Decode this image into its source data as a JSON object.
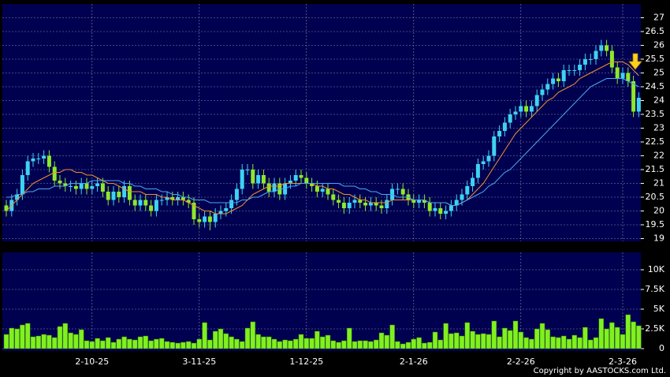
{
  "chart_data": [
    {
      "type": "candlestick",
      "up_color": "#3fd2f2",
      "down_color": "#8ee82a",
      "open": [
        20.2,
        20.0,
        20.4,
        20.6,
        21.3,
        21.8,
        21.9,
        21.9,
        22.0,
        21.6,
        21.1,
        21.0,
        20.9,
        20.9,
        20.8,
        21.0,
        20.8,
        20.9,
        21.0,
        20.7,
        20.4,
        20.7,
        20.5,
        20.9,
        20.4,
        20.2,
        20.4,
        20.2,
        20.0,
        20.4,
        20.4,
        20.5,
        20.4,
        20.5,
        20.4,
        20.3,
        19.7,
        19.6,
        19.8,
        19.6,
        19.9,
        20.0,
        20.1,
        20.4,
        20.8,
        21.5,
        21.5,
        21.0,
        21.3,
        21.0,
        20.7,
        21.0,
        20.6,
        21.0,
        21.1,
        21.3,
        21.2,
        21.0,
        20.9,
        20.7,
        20.8,
        20.6,
        20.4,
        20.3,
        20.1,
        20.3,
        20.4,
        20.3,
        20.2,
        20.3,
        20.2,
        20.1,
        20.4,
        20.8,
        20.8,
        20.6,
        20.4,
        20.3,
        20.4,
        20.3,
        20.0,
        20.1,
        19.9,
        20.0,
        20.2,
        20.4,
        20.6,
        20.9,
        21.2,
        21.7,
        21.8,
        22.0,
        22.7,
        22.9,
        23.2,
        23.5,
        23.6,
        23.8,
        23.6,
        23.8,
        24.2,
        24.4,
        24.6,
        24.8,
        24.7,
        25.1,
        25.1,
        25.1,
        25.3,
        25.5,
        25.5,
        25.8,
        26.0,
        25.8,
        25.2,
        24.8,
        25.0,
        24.7,
        23.6
      ],
      "high": [
        20.4,
        20.6,
        20.8,
        21.5,
        22.0,
        22.1,
        22.1,
        22.2,
        22.2,
        21.8,
        21.3,
        21.2,
        21.1,
        21.1,
        21.2,
        21.2,
        21.1,
        21.2,
        21.2,
        20.9,
        20.9,
        20.9,
        21.1,
        21.1,
        20.6,
        20.6,
        20.6,
        20.4,
        20.6,
        20.6,
        20.7,
        20.7,
        20.7,
        20.7,
        20.6,
        20.5,
        19.9,
        20.0,
        20.0,
        20.1,
        20.2,
        20.3,
        20.6,
        21.0,
        21.7,
        21.7,
        21.7,
        21.5,
        21.5,
        21.2,
        21.2,
        21.2,
        21.2,
        21.3,
        21.5,
        21.5,
        21.4,
        21.2,
        21.1,
        21.0,
        21.0,
        20.8,
        20.6,
        20.5,
        20.5,
        20.6,
        20.6,
        20.5,
        20.5,
        20.5,
        20.4,
        20.6,
        21.0,
        21.0,
        21.0,
        20.8,
        20.6,
        20.6,
        20.6,
        20.5,
        20.3,
        20.3,
        20.2,
        20.4,
        20.6,
        20.8,
        21.1,
        21.4,
        21.9,
        22.0,
        22.2,
        22.9,
        23.1,
        23.4,
        23.7,
        23.8,
        24.0,
        24.0,
        24.0,
        24.4,
        24.6,
        24.8,
        25.0,
        25.0,
        25.3,
        25.3,
        25.3,
        25.5,
        25.7,
        25.7,
        26.0,
        26.2,
        26.2,
        26.0,
        25.4,
        25.2,
        25.2,
        24.9,
        24.3
      ],
      "low": [
        19.8,
        19.8,
        20.2,
        20.4,
        21.1,
        21.6,
        21.7,
        21.7,
        21.4,
        20.9,
        20.8,
        20.7,
        20.7,
        20.6,
        20.6,
        20.6,
        20.6,
        20.7,
        20.5,
        20.2,
        20.2,
        20.3,
        20.3,
        20.2,
        20.0,
        20.0,
        20.0,
        19.8,
        19.8,
        20.2,
        20.2,
        20.2,
        20.2,
        20.2,
        20.1,
        19.5,
        19.4,
        19.4,
        19.3,
        19.4,
        19.7,
        19.8,
        19.9,
        20.2,
        20.6,
        21.3,
        20.8,
        20.8,
        20.8,
        20.5,
        20.5,
        20.4,
        20.4,
        20.8,
        20.9,
        21.0,
        20.8,
        20.7,
        20.5,
        20.5,
        20.4,
        20.2,
        20.1,
        19.9,
        19.9,
        20.1,
        20.1,
        20.0,
        20.0,
        20.0,
        19.9,
        19.9,
        20.2,
        20.6,
        20.4,
        20.2,
        20.1,
        20.1,
        20.1,
        19.8,
        19.8,
        19.7,
        19.7,
        19.8,
        20.0,
        20.2,
        20.4,
        20.7,
        21.0,
        21.5,
        21.6,
        21.8,
        22.5,
        22.7,
        23.0,
        23.3,
        23.4,
        23.4,
        23.4,
        23.6,
        24.0,
        24.2,
        24.4,
        24.5,
        24.5,
        24.9,
        24.9,
        24.9,
        25.1,
        25.3,
        25.3,
        25.6,
        25.6,
        25.0,
        24.6,
        24.6,
        24.5,
        23.4,
        23.4
      ],
      "close": [
        20.0,
        20.4,
        20.6,
        21.3,
        21.8,
        21.9,
        21.9,
        22.0,
        21.6,
        21.1,
        21.0,
        20.9,
        20.9,
        20.8,
        21.0,
        20.8,
        20.9,
        21.0,
        20.7,
        20.4,
        20.7,
        20.5,
        20.9,
        20.4,
        20.2,
        20.4,
        20.2,
        20.0,
        20.4,
        20.4,
        20.5,
        20.4,
        20.5,
        20.4,
        20.3,
        19.7,
        19.6,
        19.8,
        19.6,
        19.9,
        20.0,
        20.1,
        20.4,
        20.8,
        21.5,
        21.5,
        21.0,
        21.3,
        21.0,
        20.7,
        21.0,
        20.6,
        21.0,
        21.1,
        21.3,
        21.2,
        21.0,
        20.9,
        20.7,
        20.8,
        20.6,
        20.4,
        20.3,
        20.1,
        20.3,
        20.4,
        20.3,
        20.2,
        20.3,
        20.2,
        20.1,
        20.4,
        20.8,
        20.8,
        20.6,
        20.4,
        20.3,
        20.4,
        20.3,
        20.0,
        20.1,
        19.9,
        20.0,
        20.2,
        20.4,
        20.6,
        20.9,
        21.2,
        21.7,
        21.8,
        22.0,
        22.7,
        22.9,
        23.2,
        23.5,
        23.6,
        23.8,
        23.6,
        23.8,
        24.2,
        24.4,
        24.6,
        24.8,
        24.7,
        25.1,
        25.1,
        25.1,
        25.3,
        25.5,
        25.5,
        25.8,
        26.0,
        25.8,
        25.2,
        24.8,
        25.0,
        24.7,
        23.6,
        24.1
      ],
      "series": [
        {
          "color": "#f0902a",
          "values": [
            20.0,
            20.2,
            20.4,
            20.6,
            20.8,
            21.0,
            21.1,
            21.2,
            21.3,
            21.4,
            21.4,
            21.5,
            21.5,
            21.4,
            21.4,
            21.3,
            21.3,
            21.2,
            21.1,
            21.0,
            21.0,
            20.9,
            20.8,
            20.7,
            20.7,
            20.7,
            20.6,
            20.6,
            20.6,
            20.5,
            20.5,
            20.4,
            20.4,
            20.4,
            20.3,
            20.2,
            20.1,
            20.0,
            20.0,
            19.9,
            19.9,
            19.9,
            20.0,
            20.1,
            20.2,
            20.4,
            20.6,
            20.7,
            20.8,
            20.9,
            20.9,
            20.9,
            21.0,
            21.0,
            21.0,
            21.0,
            21.0,
            21.0,
            20.9,
            20.9,
            20.8,
            20.8,
            20.7,
            20.6,
            20.6,
            20.5,
            20.4,
            20.4,
            20.3,
            20.3,
            20.3,
            20.3,
            20.4,
            20.4,
            20.4,
            20.4,
            20.4,
            20.4,
            20.4,
            20.3,
            20.3,
            20.3,
            20.3,
            20.2,
            20.2,
            20.3,
            20.4,
            20.6,
            20.8,
            21.0,
            21.3,
            21.6,
            21.9,
            22.2,
            22.5,
            22.8,
            23.0,
            23.2,
            23.4,
            23.6,
            23.8,
            24.0,
            24.1,
            24.3,
            24.4,
            24.5,
            24.6,
            24.8,
            24.9,
            25.0,
            25.1,
            25.2,
            25.3,
            25.4,
            25.4,
            25.4,
            25.3,
            25.1,
            24.9
          ]
        },
        {
          "color": "#4aa8f0",
          "values": [
            20.5,
            20.5,
            20.6,
            20.6,
            20.7,
            20.7,
            20.8,
            20.8,
            20.8,
            20.9,
            20.9,
            20.9,
            21.0,
            21.0,
            21.0,
            21.0,
            21.1,
            21.1,
            21.1,
            21.1,
            21.1,
            21.1,
            21.0,
            21.0,
            20.9,
            20.9,
            20.8,
            20.8,
            20.8,
            20.7,
            20.7,
            20.6,
            20.6,
            20.5,
            20.5,
            20.4,
            20.4,
            20.4,
            20.3,
            20.3,
            20.3,
            20.3,
            20.3,
            20.3,
            20.4,
            20.4,
            20.5,
            20.5,
            20.6,
            20.7,
            20.7,
            20.8,
            20.8,
            20.9,
            20.9,
            21.0,
            21.0,
            21.0,
            21.0,
            21.0,
            21.0,
            21.0,
            21.0,
            20.9,
            20.9,
            20.9,
            20.8,
            20.8,
            20.7,
            20.7,
            20.6,
            20.6,
            20.6,
            20.5,
            20.5,
            20.5,
            20.4,
            20.4,
            20.4,
            20.3,
            20.3,
            20.3,
            20.3,
            20.2,
            20.2,
            20.3,
            20.4,
            20.5,
            20.6,
            20.7,
            20.9,
            21.0,
            21.2,
            21.4,
            21.5,
            21.7,
            21.9,
            22.1,
            22.3,
            22.5,
            22.7,
            22.9,
            23.1,
            23.3,
            23.5,
            23.7,
            23.9,
            24.1,
            24.3,
            24.5,
            24.6,
            24.7,
            24.8,
            24.8,
            24.8,
            24.8,
            24.7,
            24.6,
            24.5
          ]
        }
      ],
      "ylim": [
        18.9,
        27.5
      ],
      "yticks": [
        19,
        19.5,
        20,
        20.5,
        21,
        21.5,
        22,
        22.5,
        23,
        23.5,
        24,
        24.5,
        25,
        25.5,
        26,
        26.5,
        27
      ],
      "grid": true
    },
    {
      "type": "bar",
      "color": "#80f020",
      "categories": [
        null,
        null,
        null,
        null,
        null,
        null,
        null,
        null,
        null,
        null,
        null,
        null,
        null,
        null,
        null,
        null,
        "2-10-25",
        null,
        null,
        null,
        null,
        null,
        null,
        null,
        null,
        null,
        null,
        null,
        null,
        null,
        null,
        null,
        null,
        null,
        null,
        null,
        "3-11-25",
        null,
        null,
        null,
        null,
        null,
        null,
        null,
        null,
        null,
        null,
        null,
        null,
        null,
        null,
        null,
        null,
        null,
        null,
        null,
        "1-12-25",
        null,
        null,
        null,
        null,
        null,
        null,
        null,
        null,
        null,
        null,
        null,
        null,
        null,
        null,
        null,
        null,
        null,
        null,
        null,
        "2-1-26",
        null,
        null,
        null,
        null,
        null,
        null,
        null,
        null,
        null,
        null,
        null,
        null,
        null,
        null,
        null,
        null,
        null,
        null,
        null,
        "2-2-26",
        null,
        null,
        null,
        null,
        null,
        null,
        null,
        null,
        null,
        null,
        null,
        null,
        null,
        null,
        null,
        null,
        null,
        null,
        "2-3-26",
        null,
        null,
        null
      ],
      "values": [
        1800,
        2600,
        2500,
        3000,
        3200,
        1500,
        1600,
        1800,
        1700,
        1400,
        2800,
        3200,
        2000,
        1800,
        2400,
        1000,
        900,
        1300,
        1000,
        1400,
        800,
        1200,
        1500,
        1200,
        1100,
        1500,
        1600,
        1000,
        1200,
        1300,
        900,
        800,
        700,
        800,
        900,
        700,
        1200,
        3300,
        1100,
        2200,
        2500,
        1900,
        1500,
        1200,
        900,
        2600,
        3400,
        1800,
        1500,
        1500,
        1200,
        900,
        1100,
        1000,
        1200,
        1800,
        1300,
        1300,
        2200,
        1500,
        1700,
        1000,
        800,
        1000,
        2600,
        900,
        1000,
        1000,
        900,
        1100,
        2000,
        1700,
        3000,
        900,
        600,
        800,
        1200,
        1400,
        700,
        800,
        2100,
        1100,
        3200,
        1900,
        2000,
        1600,
        3300,
        2200,
        1800,
        1900,
        1800,
        3500,
        1500,
        2600,
        2300,
        3500,
        2100,
        1400,
        1200,
        2500,
        3200,
        2400,
        1500,
        1400,
        1600,
        1200,
        1700,
        1400,
        2700,
        1100,
        1400,
        3800,
        2500,
        3300,
        2700,
        1800,
        4300,
        3400,
        2900
      ],
      "ylim": [
        0,
        12200
      ],
      "yticks": [
        0,
        {
          "value": 2500,
          "label": "2.5K"
        },
        {
          "value": 5000,
          "label": "5K"
        },
        {
          "value": 7500,
          "label": "7.5K"
        },
        {
          "value": 10000,
          "label": "10K"
        }
      ],
      "grid": true
    }
  ],
  "copyright": "Copyright by AASTOCKS.com Ltd."
}
